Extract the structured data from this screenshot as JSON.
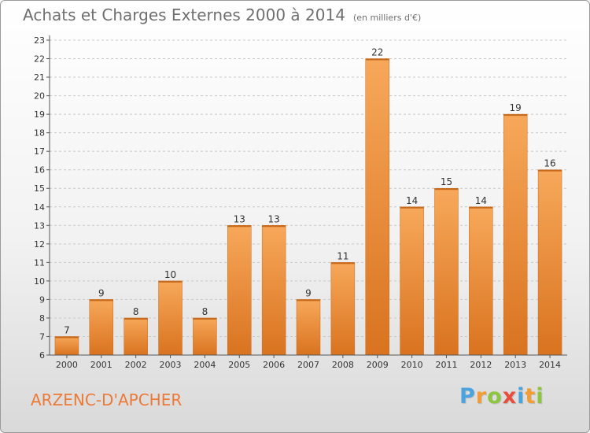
{
  "header": {
    "title": "Achats et Charges Externes 2000 à 2014",
    "subtitle": "(en milliers d'€)"
  },
  "footer": {
    "city": "ARZENC-D'APCHER",
    "logo_letters": [
      "P",
      "r",
      "o",
      "x",
      "i",
      "t",
      "i"
    ],
    "logo_colors": [
      "#4aa3df",
      "#f39c33",
      "#8cc63f",
      "#e74c3c",
      "#4aa3df",
      "#f39c33",
      "#8cc63f"
    ]
  },
  "colors": {
    "bar_top": "#f7a85a",
    "bar_bottom": "#d9731f",
    "bar_edge": "#c86a1c",
    "grid": "#c8c8c8",
    "axis": "#555555"
  },
  "chart_data": {
    "type": "bar",
    "title": "Achats et Charges Externes 2000 à 2014",
    "subtitle": "(en milliers d'€)",
    "xlabel": "",
    "ylabel": "",
    "categories": [
      "2000",
      "2001",
      "2002",
      "2003",
      "2004",
      "2005",
      "2006",
      "2007",
      "2008",
      "2009",
      "2010",
      "2011",
      "2012",
      "2013",
      "2014"
    ],
    "values": [
      7,
      9,
      8,
      10,
      8,
      13,
      13,
      9,
      11,
      22,
      14,
      15,
      14,
      19,
      16
    ],
    "value_labels": [
      "7",
      "9",
      "8",
      "10",
      "8",
      "13",
      "13",
      "9",
      "11",
      "22",
      "14",
      "15",
      "14",
      "19",
      "16"
    ],
    "ylim": [
      6,
      23
    ],
    "yticks": [
      "6",
      "7",
      "8",
      "9",
      "10",
      "11",
      "12",
      "13",
      "14",
      "15",
      "16",
      "17",
      "18",
      "19",
      "20",
      "21",
      "22",
      "23"
    ],
    "grid": true,
    "legend": "none"
  }
}
